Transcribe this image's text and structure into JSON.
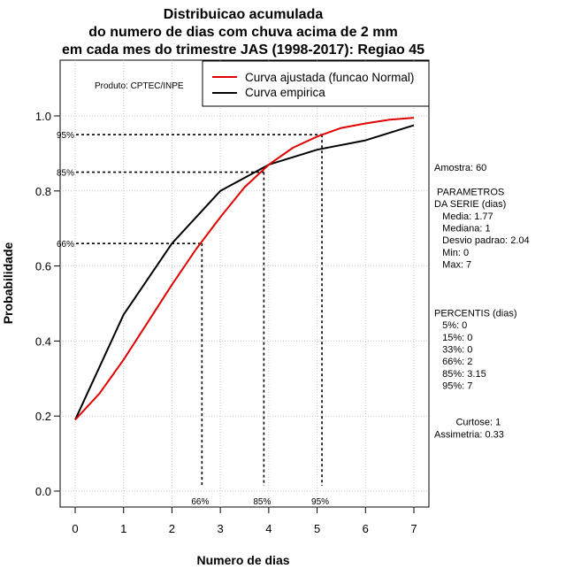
{
  "chart_data": {
    "type": "line",
    "title_lines": [
      "Distribuicao acumulada",
      "do numero de dias com chuva acima de 2 mm",
      "em cada mes do trimestre JAS (1998-2017): Regiao 45"
    ],
    "xlabel": "Numero de dias",
    "ylabel": "Probabilidade",
    "xlim": [
      0,
      7
    ],
    "ylim": [
      0,
      1.0
    ],
    "x_ticks": [
      "0",
      "1",
      "2",
      "3",
      "4",
      "5",
      "6",
      "7"
    ],
    "y_ticks": [
      "0.0",
      "0.2",
      "0.4",
      "0.6",
      "0.8",
      "1.0"
    ],
    "grid": true,
    "legend_position": "top-right",
    "series": [
      {
        "name": "Curva ajustada (funcao Normal)",
        "color": "#e00000",
        "x": [
          0,
          0.5,
          1,
          1.5,
          2,
          2.5,
          3,
          3.5,
          4,
          4.5,
          5,
          5.5,
          6,
          6.5,
          7
        ],
        "y": [
          0.19,
          0.26,
          0.35,
          0.45,
          0.55,
          0.645,
          0.73,
          0.81,
          0.87,
          0.915,
          0.945,
          0.968,
          0.98,
          0.99,
          0.995
        ]
      },
      {
        "name": "Curva empirica",
        "color": "#000000",
        "x": [
          0,
          1,
          2,
          3,
          4,
          5,
          6,
          7
        ],
        "y": [
          0.19,
          0.47,
          0.66,
          0.8,
          0.87,
          0.91,
          0.935,
          0.975
        ]
      }
    ],
    "percentile_markers": [
      {
        "label_y": "66%",
        "label_x": "66%",
        "x": 2.62,
        "y": 0.66
      },
      {
        "label_y": "85%",
        "label_x": "85%",
        "x": 3.9,
        "y": 0.85
      },
      {
        "label_y": "95%",
        "label_x": "95%",
        "x": 5.1,
        "y": 0.95
      }
    ],
    "annotation": "Produto: CPTEC/INPE"
  },
  "side_panel": {
    "lines": [
      "Amostra: 60",
      "",
      " PARAMETROS",
      "DA SERIE (dias)",
      "   Media: 1.77",
      "   Mediana: 1",
      "   Desvio padrao: 2.04",
      "   Min: 0",
      "   Max: 7",
      "",
      "",
      "",
      "PERCENTIS (dias)",
      "   5%: 0",
      "   15%: 0",
      "   33%: 0",
      "   66%: 2",
      "   85%: 3.15",
      "   95%: 7",
      "",
      "",
      "        Curtose: 1",
      "Assimetria: 0.33"
    ]
  }
}
